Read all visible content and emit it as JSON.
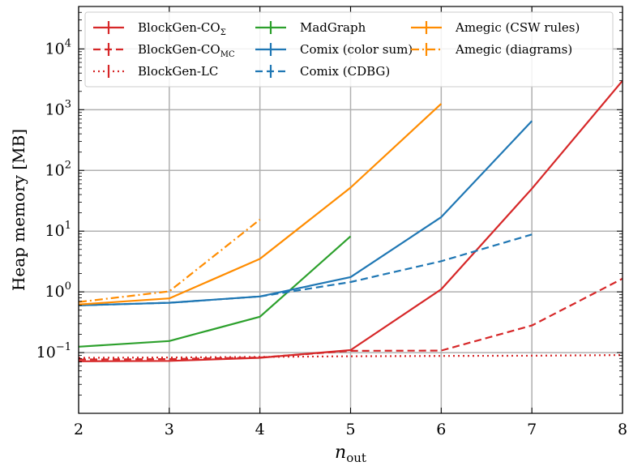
{
  "chart_data": {
    "type": "line",
    "xlabel": "n",
    "xlabel_sub": "out",
    "ylabel": "Heap memory [MB]",
    "x_ticks": [
      2,
      3,
      4,
      5,
      6,
      7,
      8
    ],
    "xlim": [
      2,
      8
    ],
    "ylim": [
      0.01,
      50000
    ],
    "y_scale": "log",
    "y_ticks": [
      {
        "value": 0.1,
        "base": "10",
        "exp": "−1"
      },
      {
        "value": 1,
        "base": "10",
        "exp": "0"
      },
      {
        "value": 10,
        "base": "10",
        "exp": "1"
      },
      {
        "value": 100,
        "base": "10",
        "exp": "2"
      },
      {
        "value": 1000,
        "base": "10",
        "exp": "3"
      },
      {
        "value": 10000,
        "base": "10",
        "exp": "4"
      }
    ],
    "grid": true,
    "legend_position": "top",
    "series": [
      {
        "name": "BlockGen-CO",
        "name_sub": "Σ",
        "color": "#d62728",
        "dash": "solid",
        "x": [
          2,
          3,
          4,
          5,
          6,
          7,
          8
        ],
        "y": [
          0.072,
          0.073,
          0.082,
          0.11,
          1.1,
          50,
          3000
        ]
      },
      {
        "name": "BlockGen-CO",
        "name_sub": "MC",
        "color": "#d62728",
        "dash": "dashed",
        "x": [
          2,
          3,
          4,
          5,
          6,
          7,
          8
        ],
        "y": [
          0.077,
          0.078,
          0.083,
          0.107,
          0.108,
          0.28,
          1.65
        ]
      },
      {
        "name": "BlockGen-LC",
        "name_sub": "",
        "color": "#d62728",
        "dash": "dotted",
        "x": [
          2,
          3,
          4,
          5,
          6,
          7,
          8
        ],
        "y": [
          0.082,
          0.083,
          0.085,
          0.087,
          0.088,
          0.089,
          0.091
        ]
      },
      {
        "name": "MadGraph",
        "name_sub": "",
        "color": "#2ca02c",
        "dash": "solid",
        "x": [
          2,
          3,
          4,
          5
        ],
        "y": [
          0.125,
          0.155,
          0.39,
          8.2
        ]
      },
      {
        "name": "Comix (color sum)",
        "name_sub": "",
        "color": "#1f77b4",
        "dash": "solid",
        "x": [
          2,
          3,
          4,
          5,
          6,
          7
        ],
        "y": [
          0.6,
          0.66,
          0.84,
          1.75,
          17,
          650
        ]
      },
      {
        "name": "Comix (CDBG)",
        "name_sub": "",
        "color": "#1f77b4",
        "dash": "dashed",
        "x": [
          2,
          3,
          4,
          5,
          6,
          7
        ],
        "y": [
          0.6,
          0.66,
          0.84,
          1.45,
          3.2,
          8.8
        ]
      },
      {
        "name": "Amegic (CSW rules)",
        "name_sub": "",
        "color": "#ff8c00",
        "dash": "solid",
        "x": [
          2,
          3,
          4,
          5,
          6
        ],
        "y": [
          0.62,
          0.78,
          3.5,
          52,
          1250
        ]
      },
      {
        "name": "Amegic (diagrams)",
        "name_sub": "",
        "color": "#ff8c00",
        "dash": "dashdot",
        "x": [
          2,
          3,
          4
        ],
        "y": [
          0.68,
          1.02,
          15.5
        ]
      }
    ]
  }
}
